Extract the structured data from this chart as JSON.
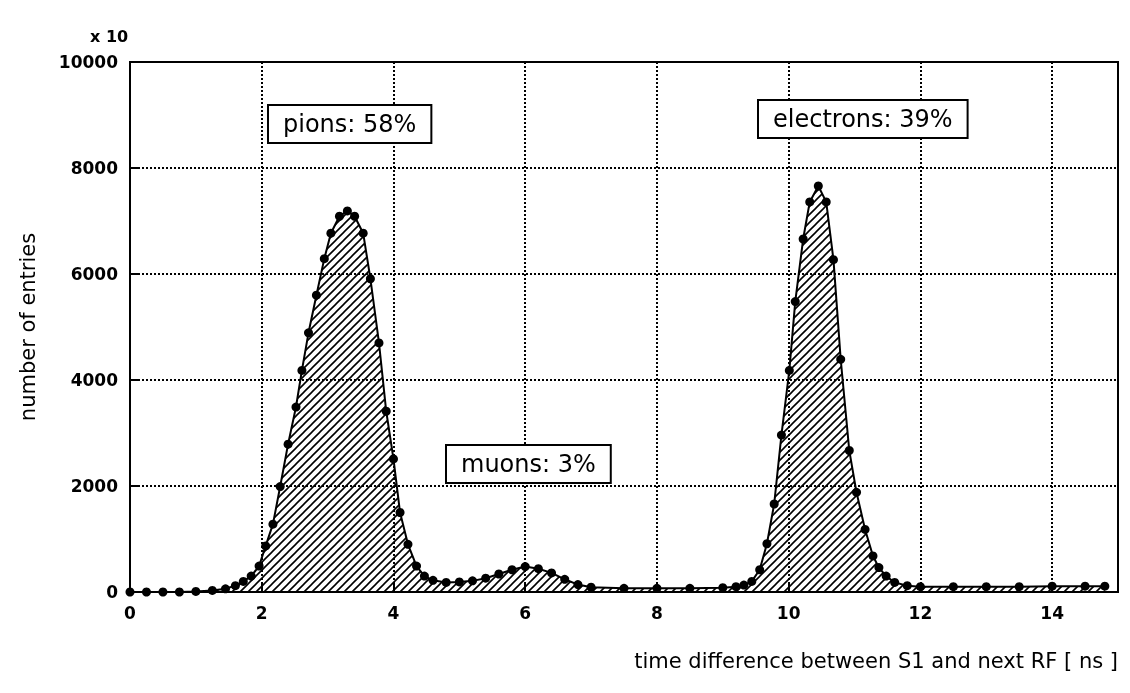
{
  "chart_data": {
    "type": "area",
    "xlabel": "time difference between S1 and next RF [ ns ]",
    "ylabel": "number of entries",
    "annotations": [
      "x 10",
      "pions: 58%",
      "muons: 3%",
      "electrons: 39%"
    ],
    "x": [
      0,
      0.25,
      0.5,
      0.75,
      1.0,
      1.25,
      1.45,
      1.6,
      1.72,
      1.84,
      1.96,
      2.06,
      2.17,
      2.28,
      2.4,
      2.52,
      2.61,
      2.71,
      2.83,
      2.95,
      3.05,
      3.18,
      3.3,
      3.41,
      3.54,
      3.65,
      3.78,
      3.89,
      4.0,
      4.1,
      4.22,
      4.35,
      4.47,
      4.6,
      4.8,
      5.0,
      5.2,
      5.4,
      5.6,
      5.8,
      6.0,
      6.2,
      6.4,
      6.6,
      6.8,
      7.0,
      7.5,
      8.0,
      8.5,
      9.0,
      9.2,
      9.32,
      9.44,
      9.56,
      9.67,
      9.78,
      9.89,
      10.01,
      10.1,
      10.22,
      10.32,
      10.45,
      10.57,
      10.68,
      10.79,
      10.92,
      11.03,
      11.16,
      11.28,
      11.37,
      11.48,
      11.61,
      11.8,
      12.0,
      12.5,
      13.0,
      13.5,
      14.0,
      14.5,
      14.8
    ],
    "values": [
      0,
      0,
      0,
      0,
      10,
      30,
      60,
      120,
      200,
      300,
      490,
      870,
      1280,
      1990,
      2790,
      3490,
      4180,
      4890,
      5600,
      6290,
      6770,
      7090,
      7190,
      7090,
      6770,
      5910,
      4700,
      3410,
      2510,
      1500,
      900,
      490,
      300,
      220,
      180,
      190,
      210,
      260,
      340,
      420,
      480,
      440,
      360,
      240,
      140,
      90,
      70,
      70,
      70,
      80,
      100,
      130,
      200,
      420,
      910,
      1660,
      2960,
      4180,
      5480,
      6660,
      7360,
      7660,
      7360,
      6270,
      4390,
      2670,
      1880,
      1180,
      680,
      460,
      300,
      180,
      120,
      100,
      100,
      100,
      100,
      110,
      110,
      110
    ],
    "color": "#000000",
    "xlim": [
      0,
      15
    ],
    "xticks": [
      0,
      2,
      4,
      6,
      8,
      10,
      12,
      14
    ],
    "ylim": [
      0,
      10000
    ],
    "yticks": [
      0,
      2000,
      4000,
      6000,
      8000,
      10000
    ],
    "grid": true,
    "marker": "circle",
    "line_style": "solid"
  }
}
